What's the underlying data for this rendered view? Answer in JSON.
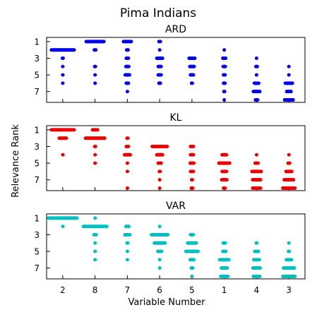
{
  "chart_data": {
    "type": "scatter",
    "title": "Pima Indians",
    "xlabel": "Variable Number",
    "ylabel": "Relevance Rank",
    "categories": [
      "2",
      "8",
      "7",
      "6",
      "5",
      "1",
      "4",
      "3"
    ],
    "yticks": [
      1,
      3,
      5,
      7
    ],
    "ylim": [
      8.3,
      0.5
    ],
    "grid": false,
    "panels": [
      {
        "name": "ARD",
        "color": "#0000ee",
        "counts": [
          [
            0,
            26,
            12,
            3,
            0,
            0,
            0,
            0
          ],
          [
            33,
            3,
            3,
            1,
            0,
            1,
            0,
            0
          ],
          [
            2,
            0,
            4,
            9,
            9,
            5,
            1,
            0
          ],
          [
            1,
            2,
            5,
            5,
            7,
            4,
            3,
            1
          ],
          [
            1,
            1,
            7,
            5,
            5,
            3,
            1,
            1
          ],
          [
            1,
            1,
            4,
            3,
            2,
            3,
            7,
            11
          ],
          [
            0,
            0,
            1,
            0,
            0,
            2,
            10,
            7
          ],
          [
            0,
            0,
            0,
            0,
            0,
            1,
            4,
            13
          ]
        ]
      },
      {
        "name": "KL",
        "color": "#ee0000",
        "counts": [
          [
            33,
            8,
            0,
            0,
            0,
            0,
            0,
            0
          ],
          [
            11,
            28,
            2,
            0,
            0,
            0,
            0,
            0
          ],
          [
            0,
            2,
            4,
            22,
            5,
            0,
            0,
            0
          ],
          [
            1,
            1,
            9,
            9,
            5,
            7,
            1,
            1
          ],
          [
            0,
            1,
            1,
            5,
            6,
            16,
            5,
            3
          ],
          [
            0,
            0,
            1,
            2,
            5,
            7,
            14,
            9
          ],
          [
            0,
            0,
            0,
            1,
            2,
            8,
            12,
            14
          ],
          [
            0,
            0,
            1,
            1,
            3,
            3,
            12,
            18
          ]
        ]
      },
      {
        "name": "VAR",
        "color": "#00c0c0",
        "counts": [
          [
            41,
            1,
            0,
            0,
            0,
            0,
            0,
            0
          ],
          [
            1,
            34,
            5,
            1,
            0,
            0,
            0,
            0
          ],
          [
            0,
            4,
            8,
            24,
            5,
            0,
            0,
            0
          ],
          [
            0,
            1,
            2,
            16,
            13,
            4,
            2,
            1
          ],
          [
            0,
            1,
            1,
            6,
            18,
            5,
            6,
            2
          ],
          [
            0,
            1,
            1,
            1,
            6,
            14,
            9,
            8
          ],
          [
            0,
            0,
            0,
            1,
            3,
            9,
            11,
            16
          ],
          [
            0,
            0,
            0,
            0,
            1,
            11,
            10,
            18
          ]
        ]
      }
    ]
  }
}
